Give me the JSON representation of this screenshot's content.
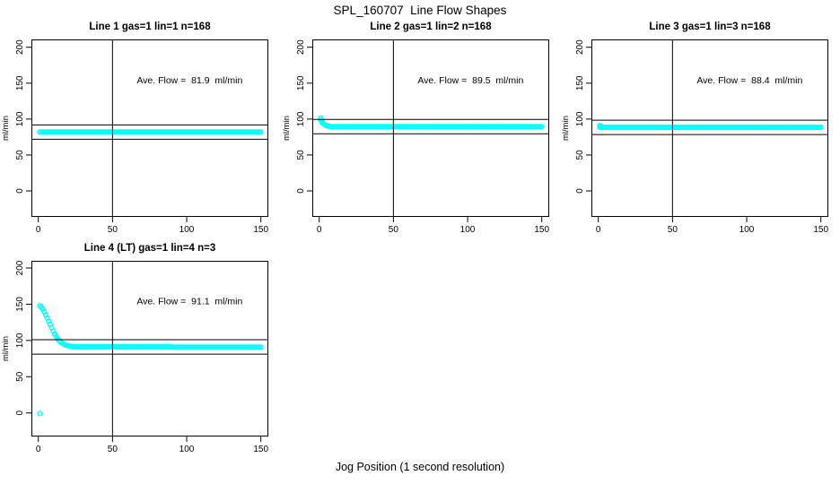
{
  "figure": {
    "title": "SPL_160707  Line Flow Shapes",
    "xlabel": "Jog Position (1 second resolution)",
    "background_color": "#FFFFFF",
    "line_color": "#000000",
    "marker_color": "#00FFFF",
    "text_color": "#000000"
  },
  "chart_data": [
    {
      "type": "scatter",
      "title": "Line 1 gas=1 lin=1 n=168",
      "ylabel": "ml/min",
      "annotation": "Ave. Flow =  81.9  ml/min",
      "avg_flow_ml_min": 81.9,
      "n_points": 168,
      "xticks": [
        0,
        50,
        100,
        150
      ],
      "yticks": [
        0,
        50,
        100,
        150,
        200
      ],
      "xlim": [
        -5,
        155.5
      ],
      "ylim": [
        -36,
        211
      ],
      "grid": false,
      "vline_x": 50,
      "hlines": [
        91.9,
        71.9
      ],
      "annotation_pos": [
        102,
        150
      ],
      "series": {
        "head_points": [],
        "runs": [
          {
            "from": 1,
            "to": 150,
            "y": 82
          }
        ]
      }
    },
    {
      "type": "scatter",
      "title": "Line 2 gas=1 lin=2 n=168",
      "ylabel": "ml/min",
      "annotation": "Ave. Flow =  89.5  ml/min",
      "avg_flow_ml_min": 89.5,
      "n_points": 168,
      "xticks": [
        0,
        50,
        100,
        150
      ],
      "yticks": [
        0,
        50,
        100,
        150,
        200
      ],
      "xlim": [
        -5,
        155.5
      ],
      "ylim": [
        -36,
        211
      ],
      "grid": false,
      "vline_x": 50,
      "hlines": [
        99.5,
        79.5
      ],
      "annotation_pos": [
        102,
        150
      ],
      "series": {
        "head_points": [
          [
            1,
            101.5
          ],
          [
            1,
            99
          ],
          [
            2,
            97
          ],
          [
            2,
            95
          ],
          [
            3,
            93.2
          ],
          [
            4,
            91.8
          ],
          [
            5,
            90.8
          ],
          [
            6,
            90.2
          ],
          [
            7,
            89.8
          ]
        ],
        "runs": [
          {
            "from": 8,
            "to": 150,
            "y": 89.5
          }
        ]
      }
    },
    {
      "type": "scatter",
      "title": "Line 3 gas=1 lin=3 n=168",
      "ylabel": "ml/min",
      "annotation": "Ave. Flow =  88.4  ml/min",
      "avg_flow_ml_min": 88.4,
      "n_points": 168,
      "xticks": [
        0,
        50,
        100,
        150
      ],
      "yticks": [
        0,
        50,
        100,
        150,
        200
      ],
      "xlim": [
        -5,
        155.5
      ],
      "ylim": [
        -36,
        211
      ],
      "grid": false,
      "vline_x": 50,
      "hlines": [
        98.4,
        78.4
      ],
      "annotation_pos": [
        102,
        150
      ],
      "series": {
        "head_points": [
          [
            1,
            91
          ],
          [
            2,
            90.2
          ]
        ],
        "runs": [
          {
            "from": 1,
            "to": 150,
            "y": 88.5
          }
        ]
      }
    },
    {
      "type": "scatter",
      "title": "Line 4 (LT) gas=1 lin=4 n=3",
      "ylabel": "ml/min",
      "annotation": "Ave. Flow =  91.1  ml/min",
      "avg_flow_ml_min": 91.1,
      "n_points": 3,
      "xticks": [
        0,
        50,
        100,
        150
      ],
      "yticks": [
        0,
        50,
        100,
        150,
        200
      ],
      "xlim": [
        -5,
        155.5
      ],
      "ylim": [
        -33,
        210
      ],
      "grid": false,
      "vline_x": 50,
      "hlines": [
        101.1,
        81.1
      ],
      "annotation_pos": [
        102,
        150
      ],
      "series": {
        "head_points": [
          [
            1,
            -1
          ],
          [
            1,
            148
          ],
          [
            2,
            146
          ],
          [
            3,
            143
          ],
          [
            4,
            139.5
          ],
          [
            5,
            135.5
          ],
          [
            6,
            131
          ],
          [
            7,
            126.5
          ],
          [
            8,
            122
          ],
          [
            9,
            117.5
          ],
          [
            10,
            113
          ],
          [
            11,
            109
          ],
          [
            12,
            105.5
          ],
          [
            13,
            102.5
          ],
          [
            14,
            100
          ],
          [
            15,
            98
          ],
          [
            16,
            96.3
          ],
          [
            17,
            95
          ],
          [
            18,
            94
          ],
          [
            19,
            93.2
          ],
          [
            20,
            92.6
          ],
          [
            21,
            92.2
          ],
          [
            22,
            91.9
          ],
          [
            23,
            91.7
          ],
          [
            24,
            91.5
          ]
        ],
        "runs": [
          {
            "from": 25,
            "to": 90,
            "y": 91.3
          },
          {
            "from": 91,
            "to": 150,
            "y": 90.8
          }
        ]
      }
    }
  ]
}
